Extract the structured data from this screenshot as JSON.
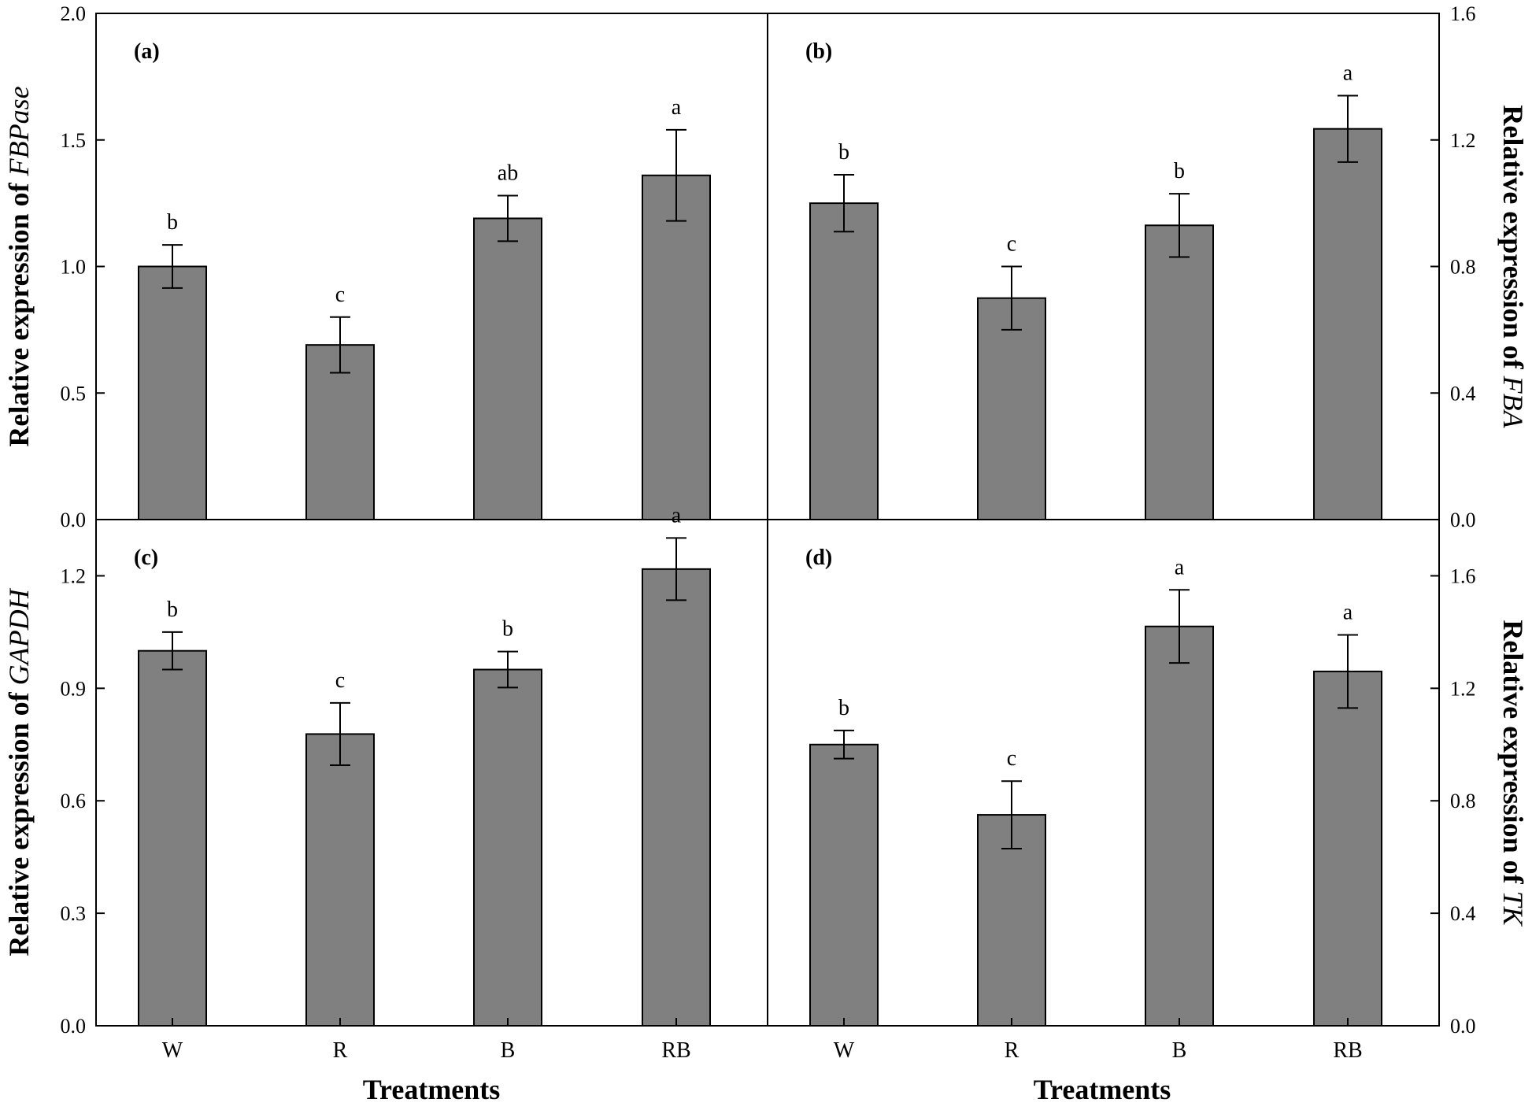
{
  "chart_data": [
    {
      "panel": "(a)",
      "type": "bar",
      "categories": [
        "W",
        "R",
        "B",
        "RB"
      ],
      "values": [
        1.0,
        0.69,
        1.19,
        1.36
      ],
      "errors": [
        0.085,
        0.11,
        0.09,
        0.18
      ],
      "significance": [
        "b",
        "c",
        "ab",
        "a"
      ],
      "ylabel_prefix": "Relative expression of ",
      "ylabel_gene": "FBPase",
      "ylim": [
        0,
        2.0
      ],
      "yticks": [
        0.0,
        0.5,
        1.0,
        1.5,
        2.0
      ],
      "ytick_labels": [
        "0.0",
        "0.5",
        "1.0",
        "1.5",
        "2.0"
      ],
      "axis_side": "left"
    },
    {
      "panel": "(b)",
      "type": "bar",
      "categories": [
        "W",
        "R",
        "B",
        "RB"
      ],
      "values": [
        1.0,
        0.7,
        0.93,
        1.235
      ],
      "errors": [
        0.09,
        0.1,
        0.1,
        0.105
      ],
      "significance": [
        "b",
        "c",
        "b",
        "a"
      ],
      "ylabel_prefix": "Relative expression of ",
      "ylabel_gene": "FBA",
      "ylim": [
        0,
        1.6
      ],
      "yticks": [
        0.0,
        0.4,
        0.8,
        1.2,
        1.6
      ],
      "ytick_labels": [
        "0.0",
        "0.4",
        "0.8",
        "1.2",
        "1.6"
      ],
      "axis_side": "right"
    },
    {
      "panel": "(c)",
      "type": "bar",
      "categories": [
        "W",
        "R",
        "B",
        "RB"
      ],
      "values": [
        1.0,
        0.778,
        0.95,
        1.218
      ],
      "errors": [
        0.05,
        0.083,
        0.048,
        0.083
      ],
      "significance": [
        "b",
        "c",
        "b",
        "a"
      ],
      "ylabel_prefix": "Relative expression of ",
      "ylabel_gene": "GAPDH",
      "ylim": [
        0,
        1.35
      ],
      "yticks": [
        0.0,
        0.3,
        0.6,
        0.9,
        1.2
      ],
      "ytick_labels": [
        "0.0",
        "0.3",
        "0.6",
        "0.9",
        "1.2"
      ],
      "axis_side": "left"
    },
    {
      "panel": "(d)",
      "type": "bar",
      "categories": [
        "W",
        "R",
        "B",
        "RB"
      ],
      "values": [
        1.0,
        0.75,
        1.42,
        1.26
      ],
      "errors": [
        0.05,
        0.12,
        0.13,
        0.13
      ],
      "significance": [
        "b",
        "c",
        "a",
        "a"
      ],
      "ylabel_prefix": "Relative expression of ",
      "ylabel_gene": "TK",
      "ylim": [
        0,
        1.8
      ],
      "yticks": [
        0.0,
        0.4,
        0.8,
        1.2,
        1.6
      ],
      "ytick_labels": [
        "0.0",
        "0.4",
        "0.8",
        "1.2",
        "1.6"
      ],
      "axis_side": "right"
    }
  ],
  "xlabel_left": "Treatments",
  "xlabel_right": "Treatments"
}
